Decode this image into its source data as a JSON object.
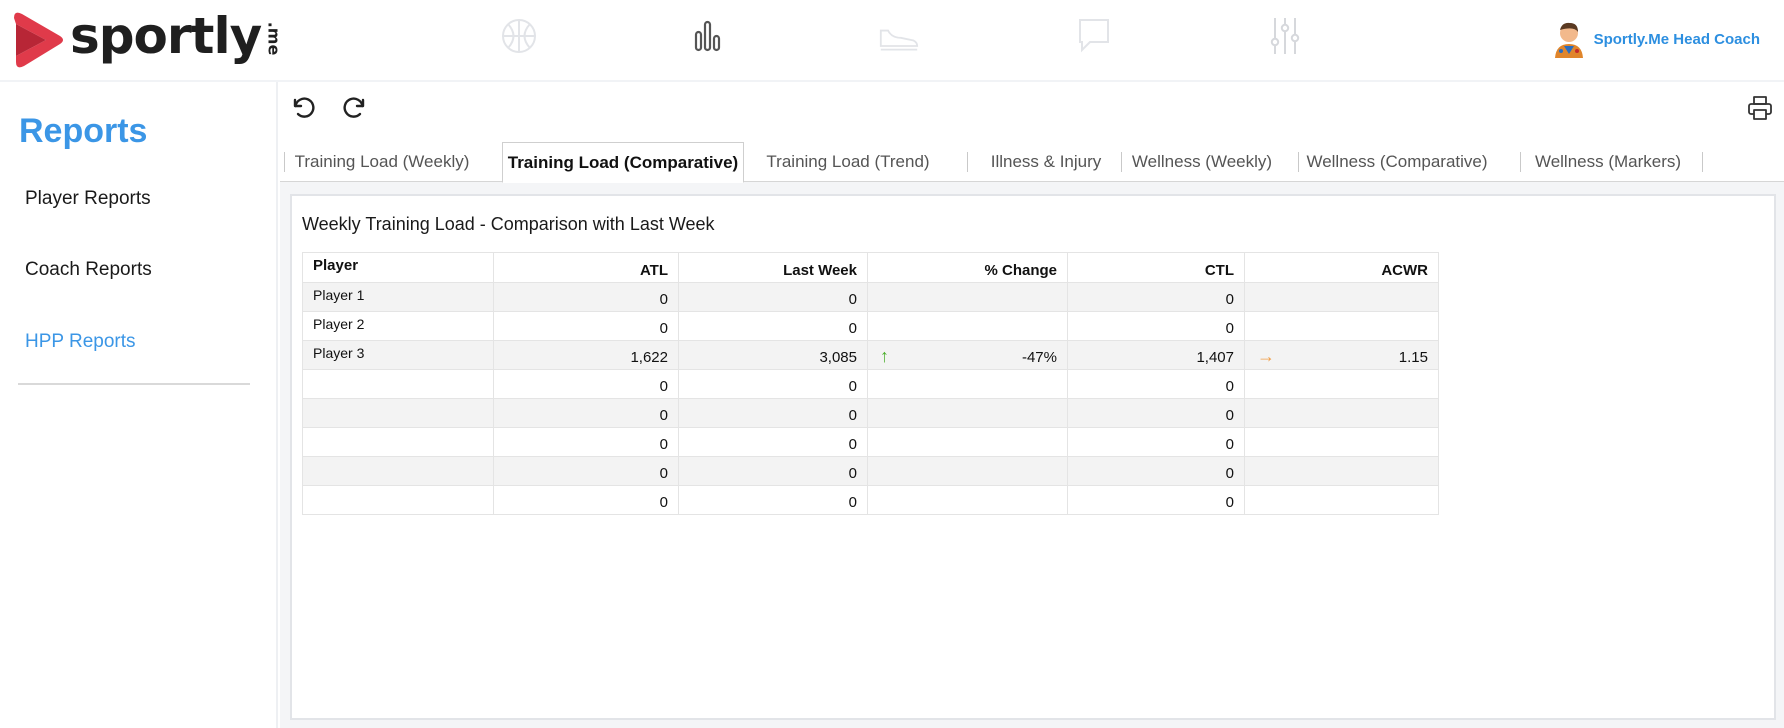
{
  "brand": {
    "name": "sportly",
    "suffix": ".me",
    "accent": "#e03a4a"
  },
  "nav": {
    "items": [
      {
        "icon": "basketball-icon",
        "active": false
      },
      {
        "icon": "bar-chart-icon",
        "active": true
      },
      {
        "icon": "sneaker-icon",
        "active": false
      },
      {
        "icon": "chat-icon",
        "active": false
      },
      {
        "icon": "sliders-icon",
        "active": false
      }
    ]
  },
  "user": {
    "name": "Sportly.Me Head Coach"
  },
  "sidebar": {
    "title": "Reports",
    "items": [
      {
        "label": "Player Reports",
        "active": false
      },
      {
        "label": "Coach Reports",
        "active": false
      },
      {
        "label": "HPP Reports",
        "active": true
      }
    ]
  },
  "toolbar": {
    "undo": "undo-icon",
    "redo": "redo-icon",
    "print": "print-icon"
  },
  "tabs": [
    {
      "label": "Training Load (Weekly)",
      "active": false
    },
    {
      "label": "Training Load (Comparative)",
      "active": true
    },
    {
      "label": "Training Load (Trend)",
      "active": false
    },
    {
      "label": "Illness & Injury",
      "active": false
    },
    {
      "label": "Wellness (Weekly)",
      "active": false
    },
    {
      "label": "Wellness (Comparative)",
      "active": false
    },
    {
      "label": "Wellness (Markers)",
      "active": false
    }
  ],
  "report": {
    "title": "Weekly Training Load - Comparison with Last Week",
    "columns": [
      "Player",
      "ATL",
      "Last Week",
      "% Change",
      "CTL",
      "ACWR"
    ],
    "rows": [
      {
        "player": "Player 1",
        "atl": "0",
        "last_week": "0",
        "change": "",
        "change_indicator": "",
        "ctl": "0",
        "acwr": "",
        "acwr_indicator": ""
      },
      {
        "player": "Player 2",
        "atl": "0",
        "last_week": "0",
        "change": "",
        "change_indicator": "",
        "ctl": "0",
        "acwr": "",
        "acwr_indicator": ""
      },
      {
        "player": "Player 3",
        "atl": "1,622",
        "last_week": "3,085",
        "change": "-47%",
        "change_indicator": "↑",
        "ctl": "1,407",
        "acwr": "1.15",
        "acwr_indicator": "→"
      },
      {
        "player": "",
        "atl": "0",
        "last_week": "0",
        "change": "",
        "change_indicator": "",
        "ctl": "0",
        "acwr": "",
        "acwr_indicator": ""
      },
      {
        "player": "",
        "atl": "0",
        "last_week": "0",
        "change": "",
        "change_indicator": "",
        "ctl": "0",
        "acwr": "",
        "acwr_indicator": ""
      },
      {
        "player": "",
        "atl": "0",
        "last_week": "0",
        "change": "",
        "change_indicator": "",
        "ctl": "0",
        "acwr": "",
        "acwr_indicator": ""
      },
      {
        "player": "",
        "atl": "0",
        "last_week": "0",
        "change": "",
        "change_indicator": "",
        "ctl": "0",
        "acwr": "",
        "acwr_indicator": ""
      },
      {
        "player": "",
        "atl": "0",
        "last_week": "0",
        "change": "",
        "change_indicator": "",
        "ctl": "0",
        "acwr": "",
        "acwr_indicator": ""
      }
    ],
    "colors": {
      "up": "#4caf2c",
      "steady": "#f0a04b"
    }
  }
}
